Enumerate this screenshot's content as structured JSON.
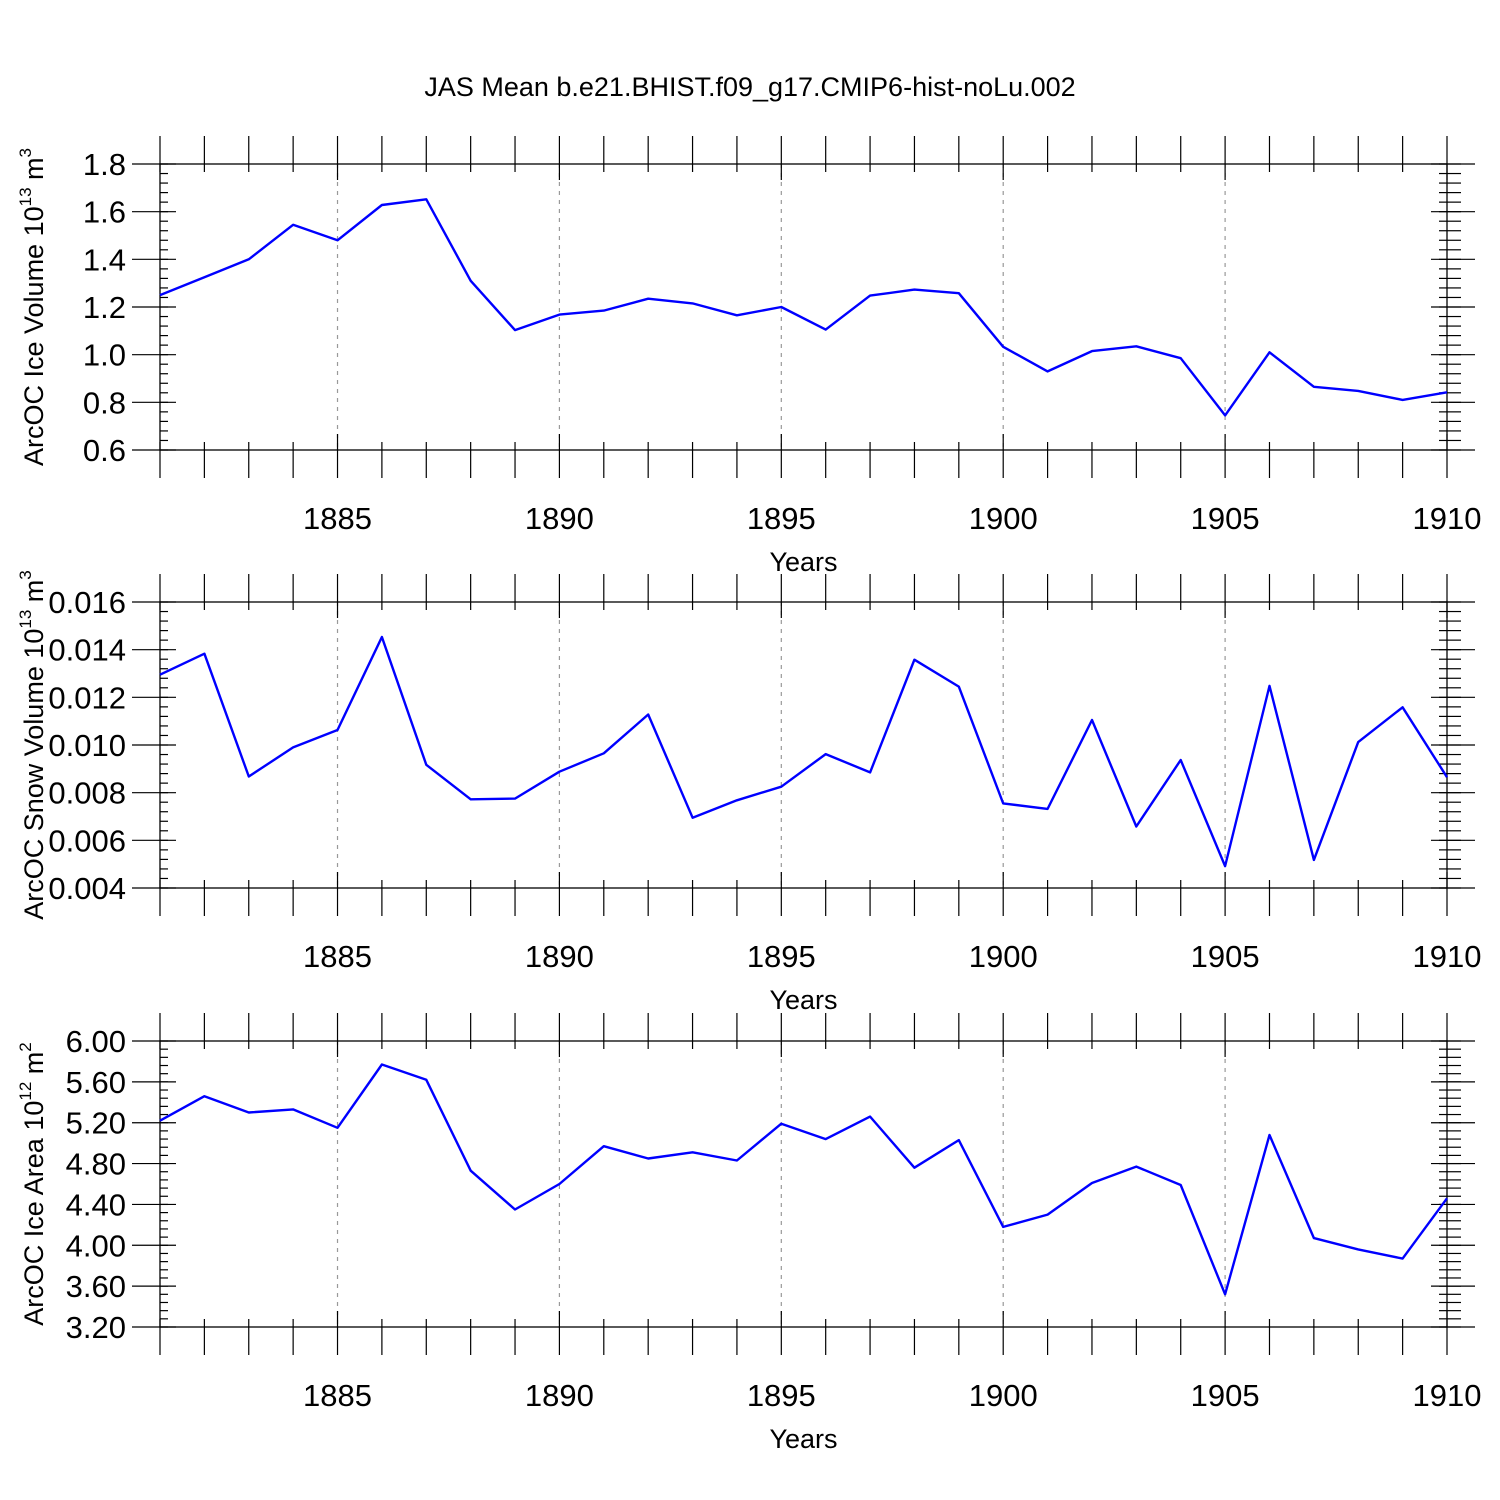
{
  "title": "JAS Mean b.e21.BHIST.f09_g17.CMIP6-hist-noLu.002",
  "colors": {
    "series": "#0000ff",
    "grid": "#999999",
    "frame": "#000000"
  },
  "chart_data": [
    {
      "type": "line",
      "xlabel": "Years",
      "ylabel_main": "ArcOC Ice Volume 10",
      "ylabel_sup": "13",
      "ylabel_unit": " m",
      "ylabel_unit_sup": "3",
      "xlim": [
        1881,
        1910
      ],
      "ylim": [
        0.6,
        1.8
      ],
      "y_major_ticks": [
        0.6,
        0.8,
        1.0,
        1.2,
        1.4,
        1.6,
        1.8
      ],
      "y_tick_labels": [
        "0.6",
        "0.8",
        "1.0",
        "1.2",
        "1.4",
        "1.6",
        "1.8"
      ],
      "y_minor_step": 0.04,
      "x_major_ticks": [
        1885,
        1890,
        1895,
        1900,
        1905,
        1910
      ],
      "x_tick_labels": [
        "1885",
        "1890",
        "1895",
        "1900",
        "1905",
        "1910"
      ],
      "x_grid": [
        1885,
        1890,
        1895,
        1900,
        1905
      ],
      "x": [
        1881,
        1882,
        1883,
        1884,
        1885,
        1886,
        1887,
        1888,
        1889,
        1890,
        1891,
        1892,
        1893,
        1894,
        1895,
        1896,
        1897,
        1898,
        1899,
        1900,
        1901,
        1902,
        1903,
        1904,
        1905,
        1906,
        1907,
        1908,
        1909,
        1910
      ],
      "values": [
        1.25,
        1.325,
        1.4,
        1.545,
        1.48,
        1.628,
        1.652,
        1.31,
        1.103,
        1.168,
        1.185,
        1.235,
        1.215,
        1.165,
        1.2,
        1.105,
        1.248,
        1.273,
        1.258,
        1.033,
        0.93,
        1.015,
        1.035,
        0.985,
        0.745,
        1.01,
        0.865,
        0.848,
        0.81,
        0.842
      ]
    },
    {
      "type": "line",
      "xlabel": "Years",
      "ylabel_main": "ArcOC Snow Volume 10",
      "ylabel_sup": "13",
      "ylabel_unit": " m",
      "ylabel_unit_sup": "3",
      "xlim": [
        1881,
        1910
      ],
      "ylim": [
        0.004,
        0.016
      ],
      "y_major_ticks": [
        0.004,
        0.006,
        0.008,
        0.01,
        0.012,
        0.014,
        0.016
      ],
      "y_tick_labels": [
        "0.004",
        "0.006",
        "0.008",
        "0.010",
        "0.012",
        "0.014",
        "0.016"
      ],
      "y_minor_step": 0.0004,
      "x_major_ticks": [
        1885,
        1890,
        1895,
        1900,
        1905,
        1910
      ],
      "x_tick_labels": [
        "1885",
        "1890",
        "1895",
        "1900",
        "1905",
        "1910"
      ],
      "x_grid": [
        1885,
        1890,
        1895,
        1900,
        1905
      ],
      "x": [
        1881,
        1882,
        1883,
        1884,
        1885,
        1886,
        1887,
        1888,
        1889,
        1890,
        1891,
        1892,
        1893,
        1894,
        1895,
        1896,
        1897,
        1898,
        1899,
        1900,
        1901,
        1902,
        1903,
        1904,
        1905,
        1906,
        1907,
        1908,
        1909,
        1910
      ],
      "values": [
        0.01295,
        0.01383,
        0.00868,
        0.0099,
        0.01063,
        0.01453,
        0.00917,
        0.00772,
        0.00775,
        0.00888,
        0.00965,
        0.01128,
        0.00695,
        0.00768,
        0.00825,
        0.00962,
        0.00885,
        0.01358,
        0.01245,
        0.00755,
        0.00732,
        0.01105,
        0.00658,
        0.00937,
        0.00492,
        0.01248,
        0.00518,
        0.01012,
        0.01158,
        0.00865
      ]
    },
    {
      "type": "line",
      "xlabel": "Years",
      "ylabel_main": "ArcOC Ice Area 10",
      "ylabel_sup": "12",
      "ylabel_unit": " m",
      "ylabel_unit_sup": "2",
      "xlim": [
        1881,
        1910
      ],
      "ylim": [
        3.2,
        6.0
      ],
      "y_major_ticks": [
        3.2,
        3.6,
        4.0,
        4.4,
        4.8,
        5.2,
        5.6,
        6.0
      ],
      "y_tick_labels": [
        "3.20",
        "3.60",
        "4.00",
        "4.40",
        "4.80",
        "5.20",
        "5.60",
        "6.00"
      ],
      "y_minor_step": 0.08,
      "x_major_ticks": [
        1885,
        1890,
        1895,
        1900,
        1905,
        1910
      ],
      "x_tick_labels": [
        "1885",
        "1890",
        "1895",
        "1900",
        "1905",
        "1910"
      ],
      "x_grid": [
        1885,
        1890,
        1895,
        1900,
        1905
      ],
      "x": [
        1881,
        1882,
        1883,
        1884,
        1885,
        1886,
        1887,
        1888,
        1889,
        1890,
        1891,
        1892,
        1893,
        1894,
        1895,
        1896,
        1897,
        1898,
        1899,
        1900,
        1901,
        1902,
        1903,
        1904,
        1905,
        1906,
        1907,
        1908,
        1909,
        1910
      ],
      "values": [
        5.22,
        5.46,
        5.3,
        5.33,
        5.15,
        5.77,
        5.62,
        4.73,
        4.35,
        4.6,
        4.97,
        4.85,
        4.91,
        4.83,
        5.19,
        5.04,
        5.26,
        4.76,
        5.03,
        4.18,
        4.3,
        4.61,
        4.77,
        4.59,
        3.52,
        5.08,
        4.07,
        3.96,
        3.87,
        4.46
      ]
    }
  ]
}
